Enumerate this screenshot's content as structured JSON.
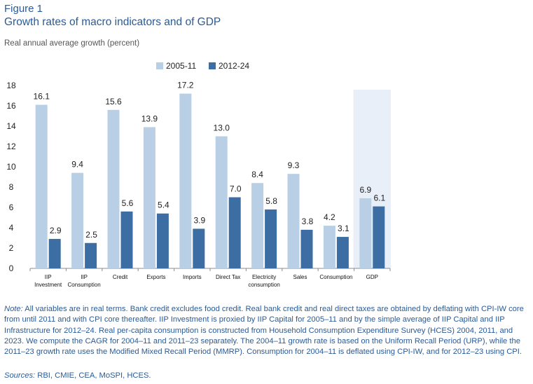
{
  "figure_label": "Figure 1",
  "title": "Growth rates of macro indicators and of GDP",
  "subtitle": "Real annual average growth (percent)",
  "colors": {
    "series1": "#b8cfe6",
    "series2": "#3d6ea3",
    "highlight": "#e8eff8",
    "text": "#2a5b97"
  },
  "chart_data": {
    "type": "bar",
    "categories": [
      "IIP Investment",
      "IIP Consumption",
      "Credit",
      "Exports",
      "Imports",
      "Direct Tax",
      "Electricity consumption",
      "Sales",
      "Consumption",
      "GDP"
    ],
    "category_lines": [
      [
        "IIP",
        "Investment"
      ],
      [
        "IIP",
        "Consumption"
      ],
      [
        "Credit"
      ],
      [
        "Exports"
      ],
      [
        "Imports"
      ],
      [
        "Direct Tax"
      ],
      [
        "Electricity",
        "consumption"
      ],
      [
        "Sales"
      ],
      [
        "Consumption"
      ],
      [
        "GDP"
      ]
    ],
    "series": [
      {
        "name": "2005-11",
        "values": [
          16.1,
          9.4,
          15.6,
          13.9,
          17.2,
          13.0,
          8.4,
          9.3,
          4.2,
          6.9
        ],
        "labels": [
          "16.1",
          "9.4",
          "15.6",
          "13.9",
          "17.2",
          "13.0",
          "8.4",
          "9.3",
          "4.2",
          "6.9"
        ]
      },
      {
        "name": "2012-24",
        "values": [
          2.9,
          2.5,
          5.6,
          5.4,
          3.9,
          7.0,
          5.8,
          3.8,
          3.1,
          6.1
        ],
        "labels": [
          "2.9",
          "2.5",
          "5.6",
          "5.4",
          "3.9",
          "7.0",
          "5.8",
          "3.8",
          "3.1",
          "6.1"
        ]
      }
    ],
    "ylim": [
      0,
      18
    ],
    "yticks": [
      "0",
      "2",
      "4",
      "6",
      "8",
      "10",
      "12",
      "14",
      "16",
      "18"
    ],
    "highlighted_category": "GDP",
    "legend_position": "top-center"
  },
  "note": {
    "label": "Note:",
    "text": " All variables are in real terms. Bank credit excludes food credit. Real bank credit and real direct taxes are obtained by deflating with CPI-IW core from until 2011 and with CPI core thereafter. IIP Investment is proxied by IIP Capital for 2005–11 and by the simple average of IIP Capital and IIP Infrastructure for 2012–24. Real per-capita consumption is constructed from Household Consumption Expenditure Survey (HCES) 2004, 2011, and 2023. We compute the CAGR for 2004–11 and 2011–23 separately. The 2004–11 growth rate is based on the Uniform Recall Period (URP), while the 2011–23 growth rate uses the Modified Mixed Recall Period (MMRP). Consumption for 2004–11 is deflated using CPI-IW, and for 2012–23 using CPI."
  },
  "sources": {
    "label": "Sources:",
    "text": " RBI, CMIE, CEA, MoSPI, HCES."
  }
}
